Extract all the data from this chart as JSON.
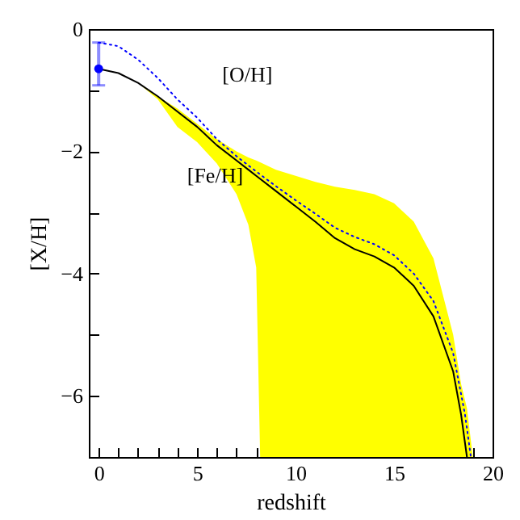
{
  "chart_data": {
    "type": "line",
    "xlabel": "redshift",
    "ylabel": "[X/H]",
    "xlim": [
      -0.5,
      20
    ],
    "ylim": [
      -7,
      0
    ],
    "xticks": [
      0,
      {
        "value": 1,
        "label": null
      },
      {
        "value": 2,
        "label": null
      },
      {
        "value": 3,
        "label": null
      },
      {
        "value": 4,
        "label": null
      },
      5,
      {
        "value": 6,
        "label": null
      },
      {
        "value": 7,
        "label": null
      },
      {
        "value": 8,
        "label": null
      },
      {
        "value": 9,
        "label": null
      },
      10,
      {
        "value": 11,
        "label": null
      },
      {
        "value": 12,
        "label": null
      },
      {
        "value": 13,
        "label": null
      },
      {
        "value": 14,
        "label": null
      },
      15,
      {
        "value": 16,
        "label": null
      },
      {
        "value": 17,
        "label": null
      },
      {
        "value": 18,
        "label": null
      },
      {
        "value": 19,
        "label": null
      },
      20
    ],
    "yticks": [
      {
        "value": -7,
        "label": null
      },
      -6,
      {
        "value": -5,
        "label": null
      },
      -4,
      {
        "value": -3,
        "label": null
      },
      -2,
      {
        "value": -1,
        "label": null
      },
      0
    ],
    "grid": false,
    "series": [
      {
        "name": "[Fe/H]",
        "color": "#000000",
        "line_style": "solid",
        "marker": "none",
        "x": [
          0,
          1,
          2,
          3,
          4,
          5,
          6,
          7,
          7.6,
          8,
          8.2,
          9,
          10,
          11,
          12,
          13,
          14,
          15,
          16,
          17,
          18,
          18.4,
          18.7,
          19
        ],
        "values": [
          -0.65,
          -0.72,
          -0.88,
          -1.1,
          -1.35,
          -1.6,
          -1.9,
          -2.15,
          -2.3,
          -2.4,
          -2.45,
          -2.65,
          -2.9,
          -3.15,
          -3.42,
          -3.6,
          -3.72,
          -3.9,
          -4.2,
          -4.7,
          -5.6,
          -6.3,
          -7,
          null
        ],
        "lower": [
          -0.65,
          -0.72,
          -0.88,
          -1.15,
          -1.6,
          -1.85,
          -2.2,
          -2.7,
          -3.2,
          -3.9,
          -7,
          -7,
          -7,
          -7,
          -7,
          -7,
          -7,
          -7,
          -7,
          -7,
          -7,
          -7,
          -7,
          -7
        ],
        "upper": [
          -0.65,
          -0.72,
          -0.88,
          -1.1,
          -1.3,
          -1.55,
          -1.8,
          -2.0,
          -2.1,
          -2.15,
          -2.18,
          -2.3,
          -2.4,
          -2.5,
          -2.58,
          -2.63,
          -2.7,
          -2.85,
          -3.15,
          -3.75,
          -5.0,
          -5.8,
          -6.2,
          -7
        ]
      },
      {
        "name": "[O/H]",
        "color": "#0000ff",
        "line_style": "dotted",
        "marker": "none",
        "x": [
          0,
          1,
          2,
          3,
          4,
          5,
          6,
          7,
          8,
          9,
          10,
          11,
          12,
          13,
          14,
          15,
          16,
          17,
          18,
          18.6,
          18.9
        ],
        "values": [
          -0.22,
          -0.28,
          -0.5,
          -0.8,
          -1.15,
          -1.45,
          -1.8,
          -2.08,
          -2.33,
          -2.57,
          -2.8,
          -3.02,
          -3.25,
          -3.4,
          -3.52,
          -3.7,
          -4.0,
          -4.45,
          -5.3,
          -6.3,
          -7
        ]
      },
      {
        "type": "scatter",
        "color": "#0000ff",
        "marker": "circle",
        "x": [
          0
        ],
        "values": [
          -0.65
        ],
        "errors": [
          [
            -0.92,
            -0.22
          ]
        ]
      }
    ]
  }
}
